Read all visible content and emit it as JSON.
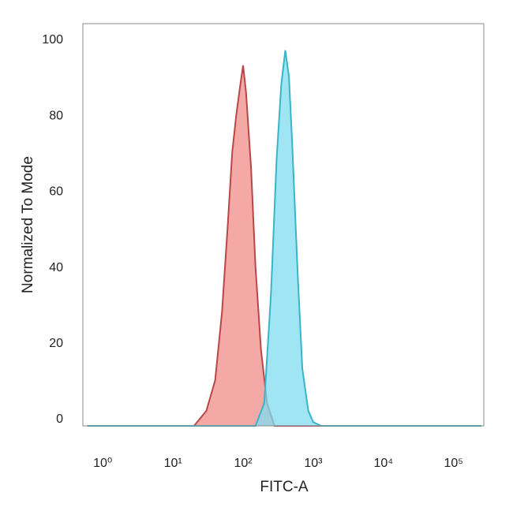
{
  "chart_data": {
    "type": "area",
    "x_label": "FITC-A",
    "y_label": "Normalized To Mode",
    "xscale": "log",
    "xlim": [
      0.52,
      270000
    ],
    "ylim": [
      0,
      106
    ],
    "xticks": [
      {
        "value": 1,
        "label": "10⁰"
      },
      {
        "value": 10,
        "label": "10¹"
      },
      {
        "value": 100,
        "label": "10²"
      },
      {
        "value": 1000,
        "label": "10³"
      },
      {
        "value": 10000,
        "label": "10⁴"
      },
      {
        "value": 100000,
        "label": "10⁵"
      }
    ],
    "yticks": [
      0,
      20,
      40,
      60,
      80,
      100
    ],
    "grid": false,
    "series": [
      {
        "color": "#f28c88",
        "edge_color": "#b84848",
        "x": [
          0.6,
          20,
          30,
          40,
          50,
          60,
          70,
          80,
          90,
          100,
          110,
          130,
          150,
          180,
          220,
          280,
          250000
        ],
        "values": [
          0,
          0,
          4,
          12,
          30,
          52,
          72,
          82,
          89,
          95,
          88,
          68,
          42,
          20,
          6,
          0,
          0
        ]
      },
      {
        "color": "#7fdcf0",
        "edge_color": "#3ab5c8",
        "x": [
          0.6,
          150,
          200,
          250,
          300,
          350,
          400,
          450,
          500,
          600,
          700,
          850,
          1000,
          1300,
          250000
        ],
        "values": [
          0,
          0,
          6,
          35,
          70,
          90,
          99,
          92,
          75,
          40,
          15,
          4,
          1,
          0,
          0
        ]
      }
    ]
  }
}
